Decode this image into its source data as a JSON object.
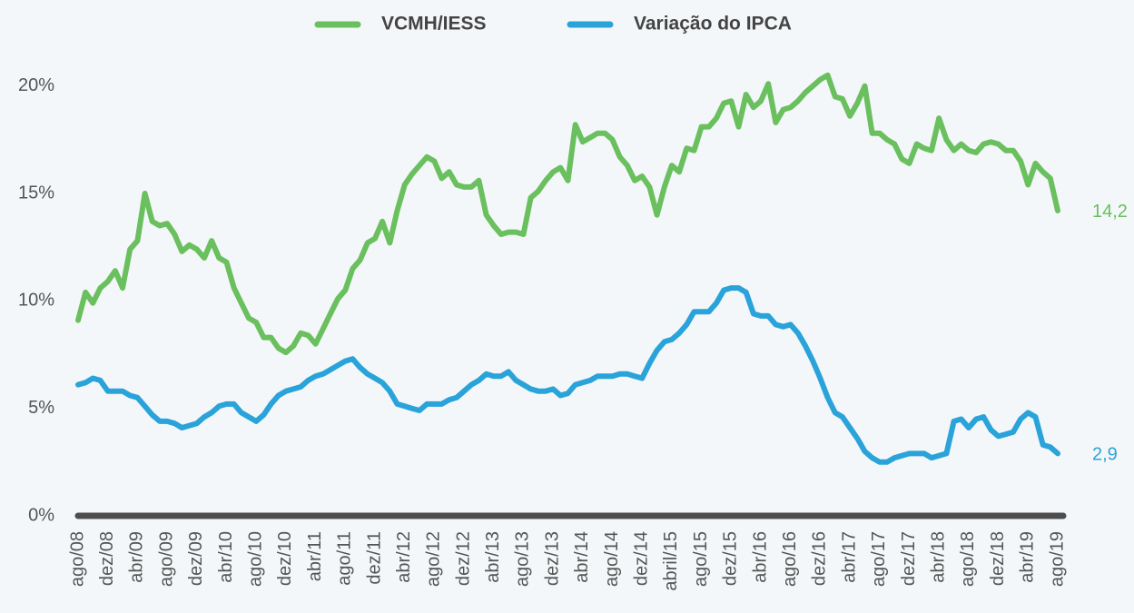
{
  "chart_data": {
    "type": "line",
    "categories": [
      "ago/08",
      null,
      null,
      null,
      "dez/08",
      null,
      null,
      null,
      "abr/09",
      null,
      null,
      null,
      "ago/09",
      null,
      null,
      null,
      "dez/09",
      null,
      null,
      null,
      "abr/10",
      null,
      null,
      null,
      "ago/10",
      null,
      null,
      null,
      "dez/10",
      null,
      null,
      null,
      "abr/11",
      null,
      null,
      null,
      "ago/11",
      null,
      null,
      null,
      "dez/11",
      null,
      null,
      null,
      "abr/12",
      null,
      null,
      null,
      "ago/12",
      null,
      null,
      null,
      "dez/12",
      null,
      null,
      null,
      "abr/13",
      null,
      null,
      null,
      "ago/13",
      null,
      null,
      null,
      "dez/13",
      null,
      null,
      null,
      "abr/14",
      null,
      null,
      null,
      "ago/14",
      null,
      null,
      null,
      "dez/14",
      null,
      null,
      null,
      "abril/15",
      null,
      null,
      null,
      "ago/15",
      null,
      null,
      null,
      "dez/15",
      null,
      null,
      null,
      "abr/16",
      null,
      null,
      null,
      "ago/16",
      null,
      null,
      null,
      "dez/16",
      null,
      null,
      null,
      "abr/17",
      null,
      null,
      null,
      "ago/17",
      null,
      null,
      null,
      "dez/17",
      null,
      null,
      null,
      "abr/18",
      null,
      null,
      null,
      "ago/18",
      null,
      null,
      null,
      "dez/18",
      null,
      null,
      null,
      "abr/19",
      null,
      null,
      null,
      "ago/19"
    ],
    "series": [
      {
        "name": "VCMH/IESS",
        "color": "#6abf5e",
        "values": [
          9.1,
          10.4,
          9.9,
          10.6,
          10.9,
          11.4,
          10.6,
          12.4,
          12.8,
          15.0,
          13.7,
          13.5,
          13.6,
          13.1,
          12.3,
          12.6,
          12.4,
          12.0,
          12.8,
          12.0,
          11.8,
          10.6,
          9.9,
          9.2,
          9.0,
          8.3,
          8.3,
          7.8,
          7.6,
          7.9,
          8.5,
          8.4,
          8.0,
          8.7,
          9.4,
          10.1,
          10.5,
          11.5,
          11.9,
          12.7,
          12.9,
          13.7,
          12.7,
          14.2,
          15.4,
          15.9,
          16.3,
          16.7,
          16.5,
          15.7,
          16.0,
          15.4,
          15.3,
          15.3,
          15.6,
          14.0,
          13.5,
          13.1,
          13.2,
          13.2,
          13.1,
          14.8,
          15.1,
          15.6,
          16.0,
          16.2,
          15.6,
          18.2,
          17.4,
          17.6,
          17.8,
          17.8,
          17.5,
          16.7,
          16.3,
          15.6,
          15.8,
          15.3,
          14.0,
          15.3,
          16.3,
          16.0,
          17.1,
          17.0,
          18.1,
          18.1,
          18.5,
          19.2,
          19.3,
          18.1,
          19.6,
          19.0,
          19.3,
          20.1,
          18.3,
          18.9,
          19.0,
          19.3,
          19.7,
          20.0,
          20.3,
          20.5,
          19.5,
          19.4,
          18.6,
          19.2,
          20.0,
          17.8,
          17.8,
          17.5,
          17.3,
          16.6,
          16.4,
          17.3,
          17.1,
          17.0,
          18.5,
          17.5,
          17.0,
          17.3,
          17.0,
          16.9,
          17.3,
          17.4,
          17.3,
          17.0,
          17.0,
          16.5,
          15.4,
          16.4,
          16.0,
          15.7,
          14.2
        ],
        "value_labels": [
          null,
          null,
          null,
          null,
          null,
          null,
          null,
          null,
          null,
          null,
          null,
          null,
          null,
          null,
          null,
          null,
          null,
          null,
          null,
          null,
          null,
          null,
          null,
          null,
          null,
          null,
          null,
          null,
          null,
          null,
          null,
          null,
          null,
          null,
          null,
          null,
          null,
          null,
          null,
          null,
          null,
          null,
          null,
          null,
          null,
          null,
          null,
          null,
          null,
          null,
          null,
          null,
          null,
          null,
          null,
          null,
          null,
          null,
          null,
          null,
          null,
          null,
          null,
          null,
          null,
          null,
          null,
          null,
          null,
          null,
          null,
          null,
          null,
          null,
          null,
          null,
          null,
          null,
          null,
          null,
          null,
          null,
          null,
          null,
          null,
          null,
          null,
          null,
          null,
          null,
          null,
          null,
          null,
          null,
          null,
          null,
          null,
          null,
          null,
          null,
          null,
          null,
          null,
          null,
          null,
          null,
          null,
          null,
          null,
          null,
          null,
          null,
          null,
          null,
          null,
          null,
          null,
          null,
          null,
          null,
          null,
          null,
          null,
          null,
          null,
          null,
          null,
          null,
          null,
          null,
          null,
          null,
          "14,2"
        ]
      },
      {
        "name": "Variação do IPCA",
        "color": "#29a3d9",
        "values": [
          6.1,
          6.2,
          6.4,
          6.3,
          5.8,
          5.8,
          5.8,
          5.6,
          5.5,
          5.1,
          4.7,
          4.4,
          4.4,
          4.3,
          4.1,
          4.2,
          4.3,
          4.6,
          4.8,
          5.1,
          5.2,
          5.2,
          4.8,
          4.6,
          4.4,
          4.7,
          5.2,
          5.6,
          5.8,
          5.9,
          6.0,
          6.3,
          6.5,
          6.6,
          6.8,
          7.0,
          7.2,
          7.3,
          6.9,
          6.6,
          6.4,
          6.2,
          5.8,
          5.2,
          5.1,
          5.0,
          4.9,
          5.2,
          5.2,
          5.2,
          5.4,
          5.5,
          5.8,
          6.1,
          6.3,
          6.6,
          6.5,
          6.5,
          6.7,
          6.3,
          6.1,
          5.9,
          5.8,
          5.8,
          5.9,
          5.6,
          5.7,
          6.1,
          6.2,
          6.3,
          6.5,
          6.5,
          6.5,
          6.6,
          6.6,
          6.5,
          6.4,
          7.1,
          7.7,
          8.1,
          8.2,
          8.5,
          8.9,
          9.5,
          9.5,
          9.5,
          9.9,
          10.5,
          10.6,
          10.6,
          10.4,
          9.4,
          9.3,
          9.3,
          8.9,
          8.8,
          8.9,
          8.5,
          7.9,
          7.2,
          6.4,
          5.5,
          4.8,
          4.6,
          4.1,
          3.6,
          3.0,
          2.7,
          2.5,
          2.5,
          2.7,
          2.8,
          2.9,
          2.9,
          2.9,
          2.7,
          2.8,
          2.9,
          4.4,
          4.5,
          4.1,
          4.5,
          4.6,
          4.0,
          3.7,
          3.8,
          3.9,
          4.5,
          4.8,
          4.6,
          3.3,
          3.2,
          2.9
        ],
        "value_labels": [
          null,
          null,
          null,
          null,
          null,
          null,
          null,
          null,
          null,
          null,
          null,
          null,
          null,
          null,
          null,
          null,
          null,
          null,
          null,
          null,
          null,
          null,
          null,
          null,
          null,
          null,
          null,
          null,
          null,
          null,
          null,
          null,
          null,
          null,
          null,
          null,
          null,
          null,
          null,
          null,
          null,
          null,
          null,
          null,
          null,
          null,
          null,
          null,
          null,
          null,
          null,
          null,
          null,
          null,
          null,
          null,
          null,
          null,
          null,
          null,
          null,
          null,
          null,
          null,
          null,
          null,
          null,
          null,
          null,
          null,
          null,
          null,
          null,
          null,
          null,
          null,
          null,
          null,
          null,
          null,
          null,
          null,
          null,
          null,
          null,
          null,
          null,
          null,
          null,
          null,
          null,
          null,
          null,
          null,
          null,
          null,
          null,
          null,
          null,
          null,
          null,
          null,
          null,
          null,
          null,
          null,
          null,
          null,
          null,
          null,
          null,
          null,
          null,
          null,
          null,
          null,
          null,
          null,
          null,
          null,
          null,
          null,
          null,
          null,
          null,
          null,
          null,
          null,
          null,
          null,
          null,
          null,
          "2,9"
        ]
      }
    ],
    "ylim": [
      0,
      21
    ],
    "yticks": [
      {
        "value": 0,
        "label": "0%"
      },
      {
        "value": 5,
        "label": "5%"
      },
      {
        "value": 10,
        "label": "10%"
      },
      {
        "value": 15,
        "label": "15%"
      },
      {
        "value": 20,
        "label": "20%"
      }
    ],
    "legend": "top"
  }
}
